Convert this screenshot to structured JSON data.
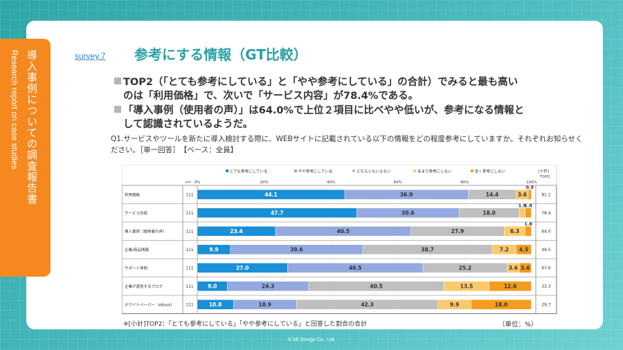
{
  "side_tab": {
    "jp": "導入事例についての調査報告書",
    "en": "Research report on case studies"
  },
  "header": {
    "survey_no": "survey.7",
    "title": "参考にする情報（GT比較）"
  },
  "bullets": [
    {
      "line1": "TOP2（「とても参考にしている」と「やや参考にしている」の合計）でみると最も高い",
      "line2": "のは「利用価格」で、次いで「サービス内容」が78.4%である。"
    },
    {
      "line1": "「導入事例（使用者の声）」は64.0%で上位２項目に比べやや低いが、参考になる情報と",
      "line2": "して認識されているようだ。"
    }
  ],
  "question": "Q1.サービスやツールを新たに導入検討する際に、WEBサイトに記載されている以下の情報をどの程度参考にしていますか。それぞれお知らせください。［単一回答］　【ベース：全員】",
  "footnote": "※[小計]TOP2：「とても参考にしている」「やや参考にしている」と回答した割合の合計",
  "unit": "（単位：%）",
  "copyright": "© SE Design Co., Ltd.",
  "chart_data": {
    "type": "bar",
    "orientation": "horizontal",
    "stacked": true,
    "n_label": "n=",
    "top2_label": [
      "[小計]",
      "TOP2"
    ],
    "categories": [
      "利用価格",
      "サービス内容",
      "導入事例（使用者の声）",
      "企業/商品情報",
      "サポート体制",
      "企業が運営するブログ",
      "ホワイトペーパー（eBook）"
    ],
    "n": [
      111,
      111,
      111,
      111,
      111,
      111,
      111
    ],
    "x_ticks": [
      "0%",
      "20%",
      "40%",
      "60%",
      "80%",
      "100%"
    ],
    "xlim": [
      0,
      100
    ],
    "legend_position": "top",
    "series": [
      {
        "name": "とても参考にしている",
        "color": "#1b8fd6",
        "text_color": "#ffffff",
        "values": [
          44.1,
          47.7,
          23.4,
          9.9,
          27.0,
          9.0,
          10.8
        ]
      },
      {
        "name": "やや参考にしている",
        "color": "#93a9df",
        "text_color": "#333333",
        "values": [
          36.9,
          30.6,
          40.5,
          39.6,
          40.5,
          24.3,
          18.9
        ]
      },
      {
        "name": "どちらともいえない",
        "color": "#bfbfbf",
        "text_color": "#333333",
        "values": [
          14.4,
          18.0,
          27.9,
          38.7,
          25.2,
          40.5,
          42.3
        ]
      },
      {
        "name": "あまり参考にしない",
        "color": "#fcc96c",
        "text_color": "#333333",
        "values": [
          3.6,
          1.8,
          6.3,
          7.2,
          3.6,
          13.5,
          9.9
        ]
      },
      {
        "name": "全く参考にしない",
        "color": "#f39c1e",
        "text_color": "#333333",
        "values": [
          0.9,
          1.8,
          1.8,
          4.5,
          3.6,
          12.6,
          18.0
        ]
      }
    ],
    "top2": [
      81.1,
      78.4,
      64.0,
      49.5,
      67.6,
      33.3,
      29.7
    ]
  }
}
